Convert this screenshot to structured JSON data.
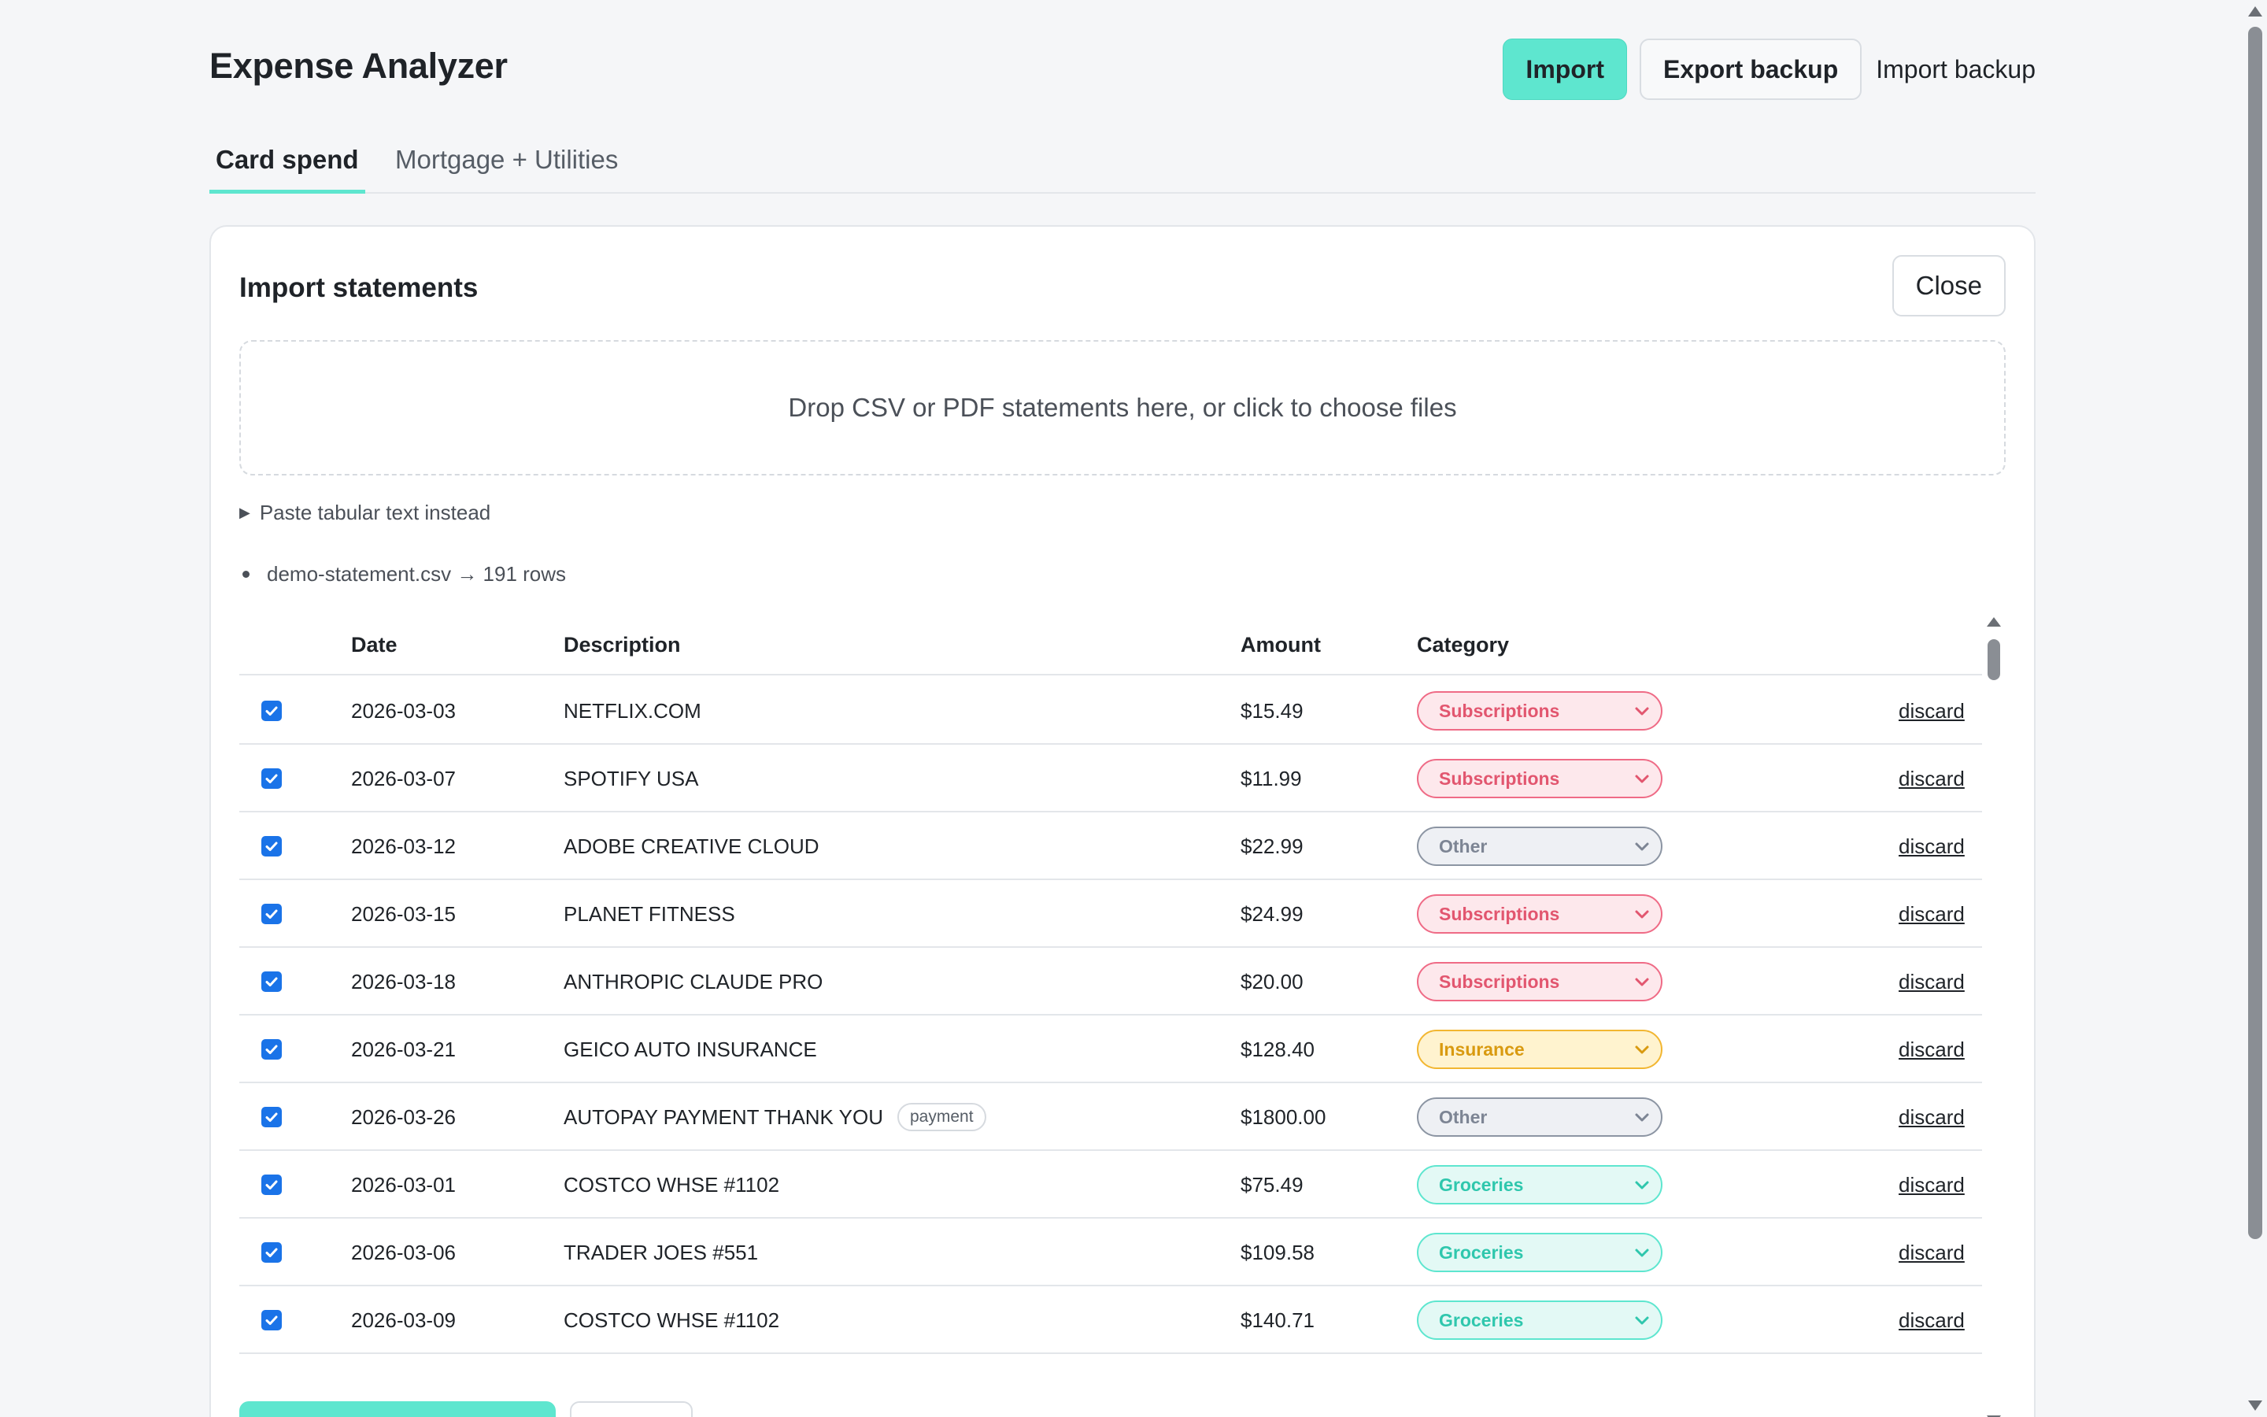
{
  "header": {
    "title": "Expense Analyzer",
    "import_label": "Import",
    "export_backup_label": "Export backup",
    "import_backup_label": "Import backup"
  },
  "tabs": [
    {
      "label": "Card spend",
      "active": true
    },
    {
      "label": "Mortgage + Utilities",
      "active": false
    }
  ],
  "panel": {
    "title": "Import statements",
    "close_label": "Close",
    "dropzone_text": "Drop CSV or PDF statements here, or click to choose files",
    "paste_toggle_label": "Paste tabular text instead",
    "file_summary": "demo-statement.csv → 191 rows"
  },
  "table": {
    "columns": {
      "date": "Date",
      "description": "Description",
      "amount": "Amount",
      "category": "Category"
    },
    "discard_label": "discard",
    "rows": [
      {
        "checked": true,
        "date": "2026-03-03",
        "description": "NETFLIX.COM",
        "amount": "$15.49",
        "category": "Subscriptions"
      },
      {
        "checked": true,
        "date": "2026-03-07",
        "description": "SPOTIFY USA",
        "amount": "$11.99",
        "category": "Subscriptions"
      },
      {
        "checked": true,
        "date": "2026-03-12",
        "description": "ADOBE CREATIVE CLOUD",
        "amount": "$22.99",
        "category": "Other"
      },
      {
        "checked": true,
        "date": "2026-03-15",
        "description": "PLANET FITNESS",
        "amount": "$24.99",
        "category": "Subscriptions"
      },
      {
        "checked": true,
        "date": "2026-03-18",
        "description": "ANTHROPIC CLAUDE PRO",
        "amount": "$20.00",
        "category": "Subscriptions"
      },
      {
        "checked": true,
        "date": "2026-03-21",
        "description": "GEICO AUTO INSURANCE",
        "amount": "$128.40",
        "category": "Insurance"
      },
      {
        "checked": true,
        "date": "2026-03-26",
        "description": "AUTOPAY PAYMENT THANK YOU",
        "badge": "payment",
        "amount": "$1800.00",
        "category": "Other"
      },
      {
        "checked": true,
        "date": "2026-03-01",
        "description": "COSTCO WHSE #1102",
        "amount": "$75.49",
        "category": "Groceries"
      },
      {
        "checked": true,
        "date": "2026-03-06",
        "description": "TRADER JOES #551",
        "amount": "$109.58",
        "category": "Groceries"
      },
      {
        "checked": true,
        "date": "2026-03-09",
        "description": "COSTCO WHSE #1102",
        "amount": "$140.71",
        "category": "Groceries"
      }
    ]
  },
  "category_colors": {
    "Subscriptions": {
      "bg": "#fde8ec",
      "border": "#ef6b86",
      "text": "#e2566f"
    },
    "Other": {
      "bg": "#eef0f4",
      "border": "#8c95a3",
      "text": "#7d8594"
    },
    "Insurance": {
      "bg": "#fff3cf",
      "border": "#f2b631",
      "text": "#d99a10"
    },
    "Groceries": {
      "bg": "#e3f9f5",
      "border": "#5ee6cf",
      "text": "#2fc7ad"
    }
  },
  "colors": {
    "accent": "#5ee6cf",
    "checkbox": "#1a73e8"
  }
}
